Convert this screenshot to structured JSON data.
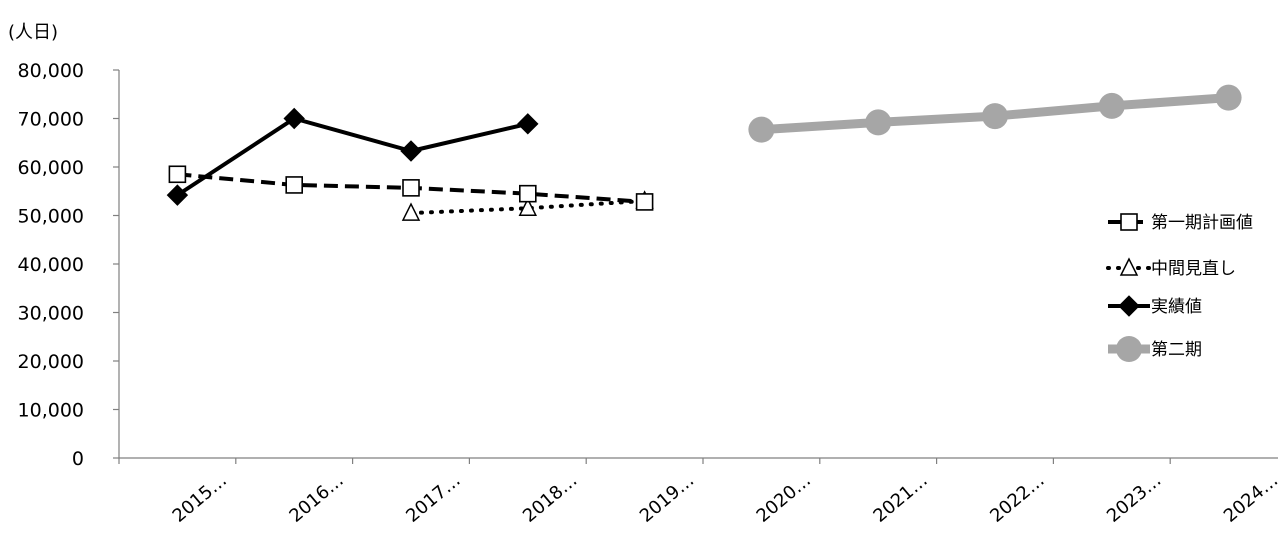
{
  "chart_data": {
    "type": "line",
    "unit_label": "(人日)",
    "categories": [
      "2015…",
      "2016…",
      "2017…",
      "2018…",
      "2019…",
      "2020…",
      "2021…",
      "2022…",
      "2023…",
      "2024…"
    ],
    "ylim": [
      0,
      80000
    ],
    "yticks": [
      "0",
      "10,000",
      "20,000",
      "30,000",
      "40,000",
      "50,000",
      "60,000",
      "70,000",
      "80,000"
    ],
    "grid": false,
    "legend_position": "right",
    "series": [
      {
        "name": "第一期計画値",
        "style": "dashed",
        "color": "#000000",
        "marker": "square",
        "values": [
          58500,
          56300,
          55700,
          54500,
          52800,
          null,
          null,
          null,
          null,
          null
        ]
      },
      {
        "name": "中間見直し",
        "style": "dotted",
        "color": "#000000",
        "marker": "triangle",
        "values": [
          null,
          null,
          50500,
          51500,
          53000,
          null,
          null,
          null,
          null,
          null
        ]
      },
      {
        "name": "実績値",
        "style": "solid",
        "color": "#000000",
        "marker": "diamond",
        "values": [
          54200,
          70000,
          63300,
          68900,
          null,
          null,
          null,
          null,
          null,
          null
        ]
      },
      {
        "name": "第二期",
        "style": "solid-thick",
        "color": "#a6a6a6",
        "marker": "circle",
        "values": [
          null,
          null,
          null,
          null,
          null,
          67700,
          69200,
          70500,
          72600,
          74300
        ]
      }
    ]
  }
}
